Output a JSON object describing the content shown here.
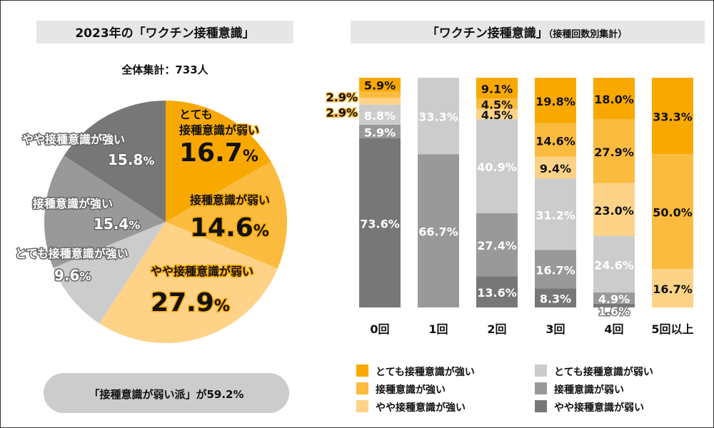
{
  "colors": {
    "c1": "#F9A800",
    "c2": "#FBBB3E",
    "c3": "#FED387",
    "c4": "#CCCCCC",
    "c5": "#999999",
    "c6": "#777777",
    "header_bg": "#E6E6E6",
    "footer_bg": "#CCCCCC"
  },
  "chart_data": [
    {
      "type": "pie",
      "title": "2023年の「ワクチン接種意識」",
      "subtitle": "全体集計：733人",
      "slices": [
        {
          "label": "とても接種意識が弱い",
          "value": 16.7,
          "display": "16.7",
          "color": "#F9A800"
        },
        {
          "label": "接種意識が弱い",
          "value": 14.6,
          "display": "14.6",
          "color": "#FBBB3E"
        },
        {
          "label": "やや接種意識が弱い",
          "value": 27.9,
          "display": "27.9",
          "color": "#FED387"
        },
        {
          "label": "とても接種意識が強い",
          "value": 9.6,
          "display": "9.6",
          "color": "#CCCCCC"
        },
        {
          "label": "接種意識が強い",
          "value": 15.4,
          "display": "15.4",
          "color": "#999999"
        },
        {
          "label": "やや接種意識が強い",
          "value": 15.8,
          "display": "15.8",
          "color": "#777777"
        }
      ],
      "footer": "「接種意識が弱い派」が59.2%"
    },
    {
      "type": "bar",
      "stacked": true,
      "title": "「ワクチン接種意識」",
      "title_note": "（接種回数別集計）",
      "categories": [
        "0回",
        "1回",
        "2回",
        "3回",
        "4回",
        "5回以上"
      ],
      "ylim": [
        0,
        100
      ],
      "series": [
        {
          "name": "とても接種意識が強い",
          "color": "#F9A800",
          "values": [
            5.9,
            0,
            9.1,
            19.8,
            18.0,
            33.3
          ]
        },
        {
          "name": "接種意識が強い",
          "color": "#FBBB3E",
          "values": [
            2.9,
            0,
            4.5,
            14.6,
            27.9,
            50.0
          ]
        },
        {
          "name": "やや接種意識が強い",
          "color": "#FED387",
          "values": [
            2.9,
            0,
            4.5,
            9.4,
            23.0,
            16.7
          ]
        },
        {
          "name": "とても接種意識が弱い",
          "color": "#CCCCCC",
          "values": [
            8.8,
            33.3,
            40.9,
            31.2,
            24.6,
            0
          ]
        },
        {
          "name": "接種意識が弱い",
          "color": "#999999",
          "values": [
            5.9,
            66.7,
            27.4,
            16.7,
            4.9,
            0
          ]
        },
        {
          "name": "やや接種意識が弱い",
          "color": "#777777",
          "values": [
            73.6,
            0,
            13.6,
            8.3,
            1.6,
            0
          ]
        }
      ]
    }
  ]
}
